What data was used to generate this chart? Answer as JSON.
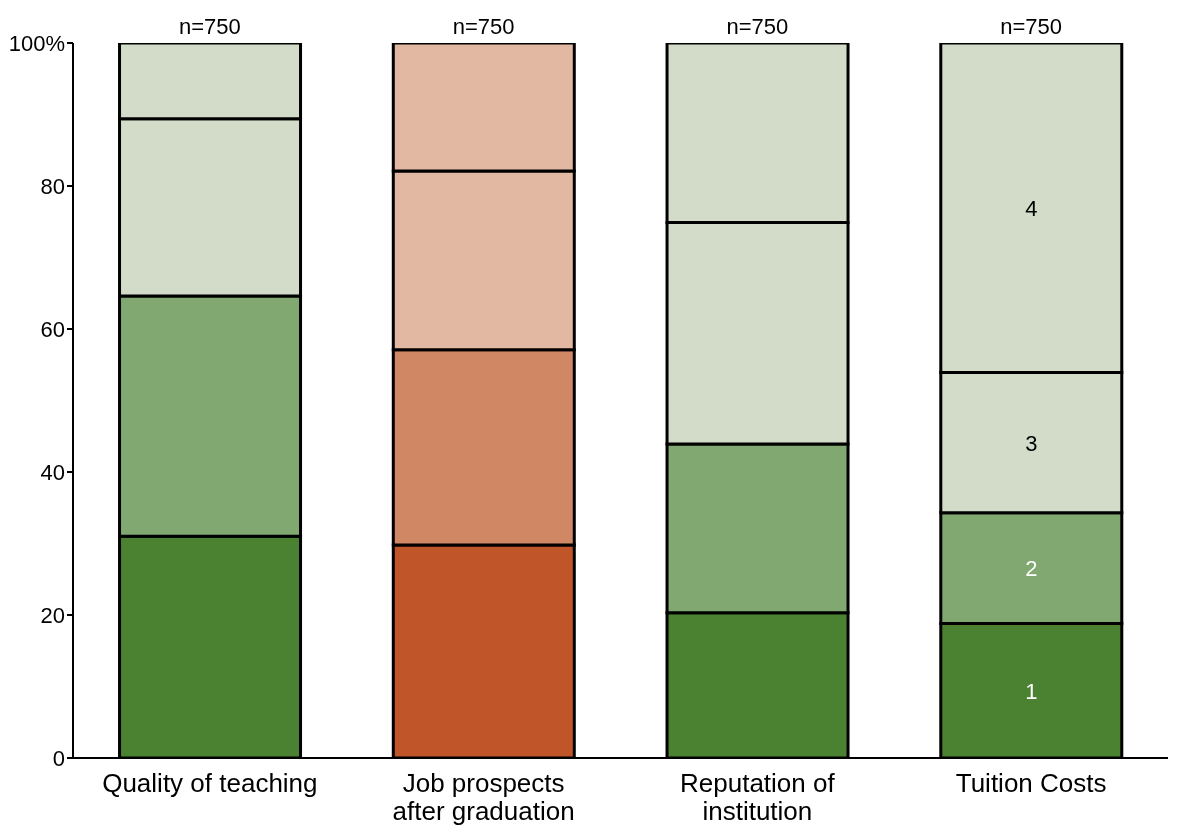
{
  "chart_data": {
    "type": "bar",
    "stacked": true,
    "categories": [
      "Quality of teaching",
      "Job prospects after graduation",
      "Reputation of institution",
      "Tuition Costs"
    ],
    "series": [
      {
        "name": "1",
        "colors": [
          "#4b8232",
          "#bf5528",
          "#4b8232",
          "#4b8232"
        ],
        "values": [
          31,
          29.8,
          20.3,
          18.8
        ]
      },
      {
        "name": "2",
        "colors": [
          "#80a870",
          "#d08763",
          "#80a870",
          "#80a870"
        ],
        "values": [
          33.6,
          27.3,
          23.6,
          15.5
        ]
      },
      {
        "name": "3",
        "colors": [
          "#d3dcc8",
          "#e2b8a3",
          "#d3dcc8",
          "#d3dcc8"
        ],
        "values": [
          24.8,
          25,
          31,
          19.6
        ]
      },
      {
        "name": "4",
        "colors": [
          "#d3dcc8",
          "#e2b8a3",
          "#d3dcc8",
          "#d3dcc8"
        ],
        "values": [
          10.6,
          17.9,
          25.1,
          46.1
        ]
      }
    ],
    "annotations": [
      {
        "text": "n=750",
        "x": "Quality of teaching",
        "y": 100
      },
      {
        "text": "n=750",
        "x": "Job prospects after graduation",
        "y": 100
      },
      {
        "text": "n=750",
        "x": "Reputation of institution",
        "y": 100
      },
      {
        "text": "n=750",
        "x": "Tuition Costs",
        "y": 100
      }
    ],
    "ylim": [
      0,
      100
    ],
    "yticks": [
      0,
      20,
      40,
      60,
      80,
      {
        "value": 100,
        "label": "100%"
      }
    ],
    "grid": false,
    "legend": false
  }
}
